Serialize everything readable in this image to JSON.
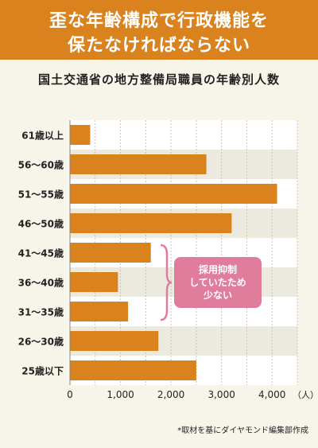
{
  "header": {
    "title_line1": "歪な年齢構成で行政機能を",
    "title_line2": "保たなければならない"
  },
  "subtitle": "国土交通省の地方整備局職員の年齢別人数",
  "annotation": {
    "line1": "採用抑制",
    "line2": "していたため",
    "line3": "少ない"
  },
  "source": "*取材を基にダイヤモンド編集部作成",
  "colors": {
    "banner": "#d9821e",
    "bar": "#d9821e",
    "callout": "#e07c9c",
    "stripe": "#ece9df"
  },
  "chart_data": {
    "type": "bar",
    "orientation": "horizontal",
    "categories": [
      "61歳以上",
      "56～60歳",
      "51～55歳",
      "46～50歳",
      "41～45歳",
      "36～40歳",
      "31～35歳",
      "26～30歳",
      "25歳以下"
    ],
    "values": [
      400,
      2700,
      4100,
      3200,
      1600,
      950,
      1150,
      1750,
      2500
    ],
    "xlim": [
      0,
      4500
    ],
    "xticks": [
      0,
      1000,
      2000,
      3000,
      4000
    ],
    "xtick_labels": [
      "0",
      "1,000",
      "2,000",
      "3,000",
      "4,000"
    ],
    "xunit": "（人）",
    "grid": true
  }
}
